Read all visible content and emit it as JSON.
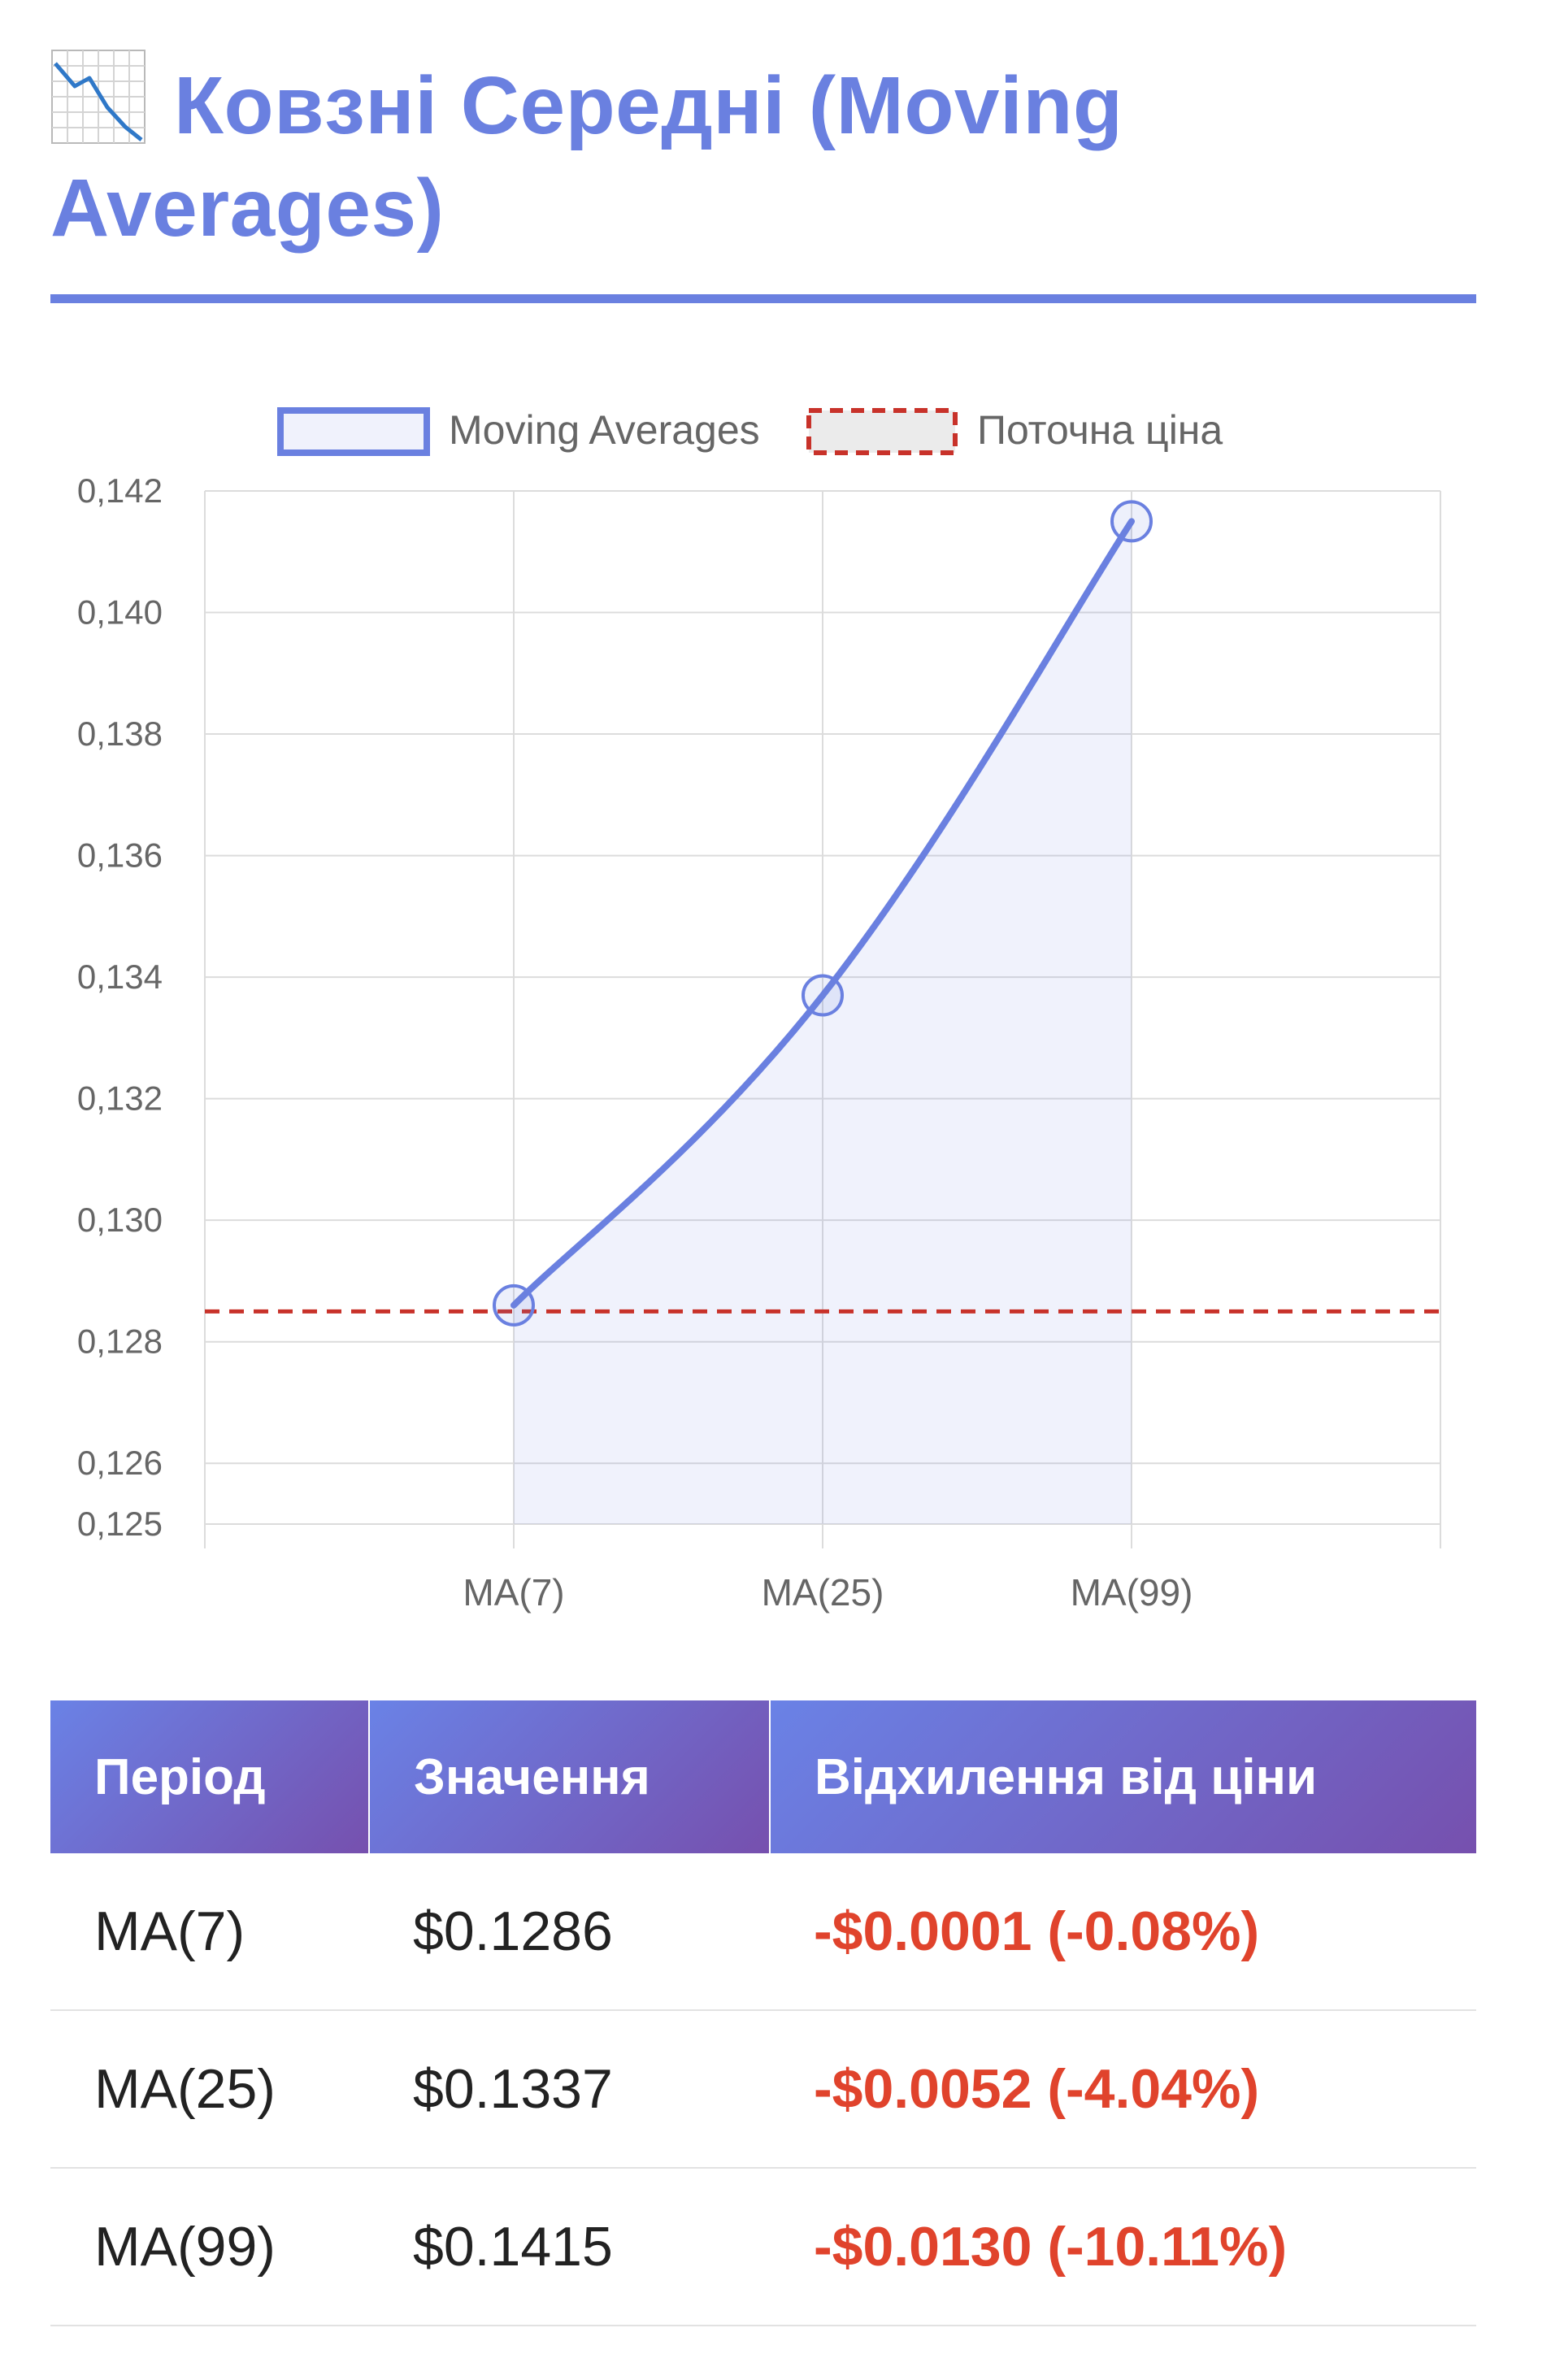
{
  "header": {
    "title": "Ковзні Середні (Moving Averages)",
    "icon": "chart-decreasing-icon"
  },
  "chart_data": {
    "type": "line",
    "categories": [
      "MA(7)",
      "MA(25)",
      "MA(99)"
    ],
    "series": [
      {
        "name": "Moving Averages",
        "values": [
          0.1286,
          0.1337,
          0.1415
        ],
        "color": "#6a80e0",
        "fill": true
      }
    ],
    "reference_lines": [
      {
        "name": "Поточна ціна",
        "value": 0.1285,
        "color": "#c8322a",
        "style": "dashed"
      }
    ],
    "ylim": [
      0.125,
      0.142
    ],
    "y_ticks": [
      0.125,
      0.126,
      0.128,
      0.13,
      0.132,
      0.134,
      0.136,
      0.138,
      0.14,
      0.142
    ],
    "y_tick_labels": [
      "0,125",
      "0,126",
      "0,128",
      "0,130",
      "0,132",
      "0,134",
      "0,136",
      "0,138",
      "0,140",
      "0,142"
    ],
    "legend_position": "top",
    "grid": true
  },
  "table": {
    "headers": [
      "Період",
      "Значення",
      "Відхилення від ціни"
    ],
    "rows": [
      {
        "period": "MA(7)",
        "value": "$0.1286",
        "deviation": "-$0.0001 (-0.08%)"
      },
      {
        "period": "MA(25)",
        "value": "$0.1337",
        "deviation": "-$0.0052 (-4.04%)"
      },
      {
        "period": "MA(99)",
        "value": "$0.1415",
        "deviation": "-$0.0130 (-10.11%)"
      }
    ]
  },
  "colors": {
    "accent": "#6a80e0",
    "negative": "#e0432c",
    "header_gradient_start": "#6a82e6",
    "header_gradient_end": "#7650ae"
  }
}
